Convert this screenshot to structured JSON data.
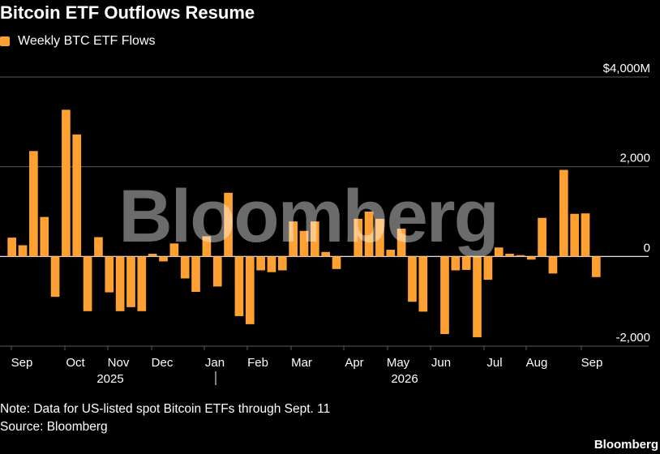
{
  "title": "Bitcoin ETF Outflows Resume",
  "legend": {
    "label": "Weekly BTC ETF Flows",
    "color": "#ffa032"
  },
  "watermark": "Bloomberg",
  "note": "Note: Data for US-listed spot Bitcoin ETFs through Sept. 11",
  "source": "Source: Bloomberg",
  "brand": "Bloomberg",
  "chart_data": {
    "type": "bar",
    "ylim": [
      -2000,
      4000
    ],
    "y_unit": "M",
    "y_ticks": [
      {
        "value": 4000,
        "label": "$4,000M"
      },
      {
        "value": 2000,
        "label": "2,000"
      },
      {
        "value": 0,
        "label": "0"
      },
      {
        "value": -2000,
        "label": "-2,000"
      }
    ],
    "x_month_labels": [
      "Sep",
      "Oct",
      "Nov",
      "Dec",
      "Jan",
      "Feb",
      "Mar",
      "Apr",
      "May",
      "Jun",
      "Jul",
      "Aug",
      "Sep"
    ],
    "x_year_labels": [
      "2025",
      "2026"
    ],
    "grid": true,
    "color": "#ffa032",
    "values": [
      420,
      250,
      2350,
      880,
      -900,
      3270,
      2720,
      -1220,
      430,
      -800,
      -1220,
      -1130,
      -1220,
      60,
      -110,
      290,
      -490,
      -790,
      450,
      -670,
      1420,
      -1330,
      -1510,
      -310,
      -350,
      -310,
      780,
      570,
      780,
      100,
      -280,
      0,
      840,
      1000,
      840,
      150,
      620,
      -1010,
      -1230,
      0,
      -1730,
      -310,
      -300,
      -1800,
      -520,
      200,
      60,
      30,
      -70,
      860,
      -380,
      1930,
      950,
      960,
      -460
    ]
  }
}
